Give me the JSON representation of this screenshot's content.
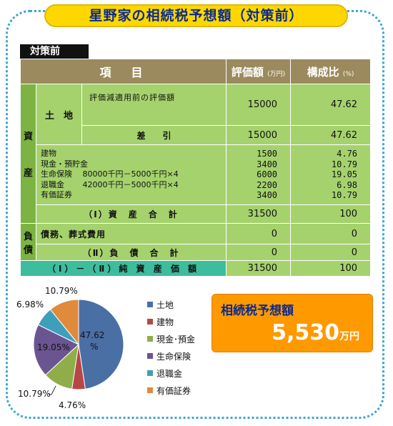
{
  "title": "星野家の相続税予想額（対策前）",
  "section_label": "対策前",
  "header": {
    "item": "項　目",
    "value": "評価額",
    "value_unit": "(万円)",
    "ratio": "構成比",
    "ratio_unit": "(%)"
  },
  "side": {
    "shi": "資",
    "san": "産",
    "fu": "負",
    "sai": "債"
  },
  "land": {
    "label": "土　地",
    "before_label": "評価減適用前の評価額",
    "before_value": "15000",
    "before_ratio": "47.62",
    "diff_label": "差　　引",
    "diff_value": "15000",
    "diff_ratio": "47.62"
  },
  "assets": [
    {
      "label": "建物",
      "value": "1500",
      "ratio": "4.76"
    },
    {
      "label": "現金・預貯金",
      "value": "3400",
      "ratio": "10.79"
    },
    {
      "label": "生命保険　 80000千円－5000千円×4",
      "value": "6000",
      "ratio": "19.05"
    },
    {
      "label": "退職金　　 42000千円－5000千円×4",
      "value": "2200",
      "ratio": "6.98"
    },
    {
      "label": "有価証券",
      "value": "3400",
      "ratio": "10.79"
    }
  ],
  "asset_total": {
    "label": "（Ⅰ）資　産　合　計",
    "value": "31500",
    "ratio": "100"
  },
  "debt": {
    "label": "債務、葬式費用",
    "value": "0",
    "ratio": "0"
  },
  "debt_total": {
    "label": "（Ⅱ）負　債　合　計",
    "value": "0",
    "ratio": "0"
  },
  "net": {
    "label": "（Ⅰ）－（Ⅱ）純 資 産 価 額",
    "value": "31500",
    "ratio": "100"
  },
  "tax": {
    "label": "相続税予想額",
    "value": "5,530",
    "unit": "万円"
  },
  "chart_data": {
    "type": "pie",
    "categories": [
      "土地",
      "建物",
      "現金･預金",
      "生命保険",
      "退職金",
      "有価証券"
    ],
    "values": [
      47.62,
      4.76,
      10.79,
      19.05,
      6.98,
      10.79
    ],
    "labels": [
      "47.62\n%",
      "4.76%",
      "10.79%",
      "19.05%",
      "6.98%",
      "10.79%"
    ],
    "colors": [
      "#4a6fa5",
      "#b74646",
      "#8fae4a",
      "#6b5591",
      "#3e9fbb",
      "#e08a3c"
    ],
    "legend": "right"
  }
}
